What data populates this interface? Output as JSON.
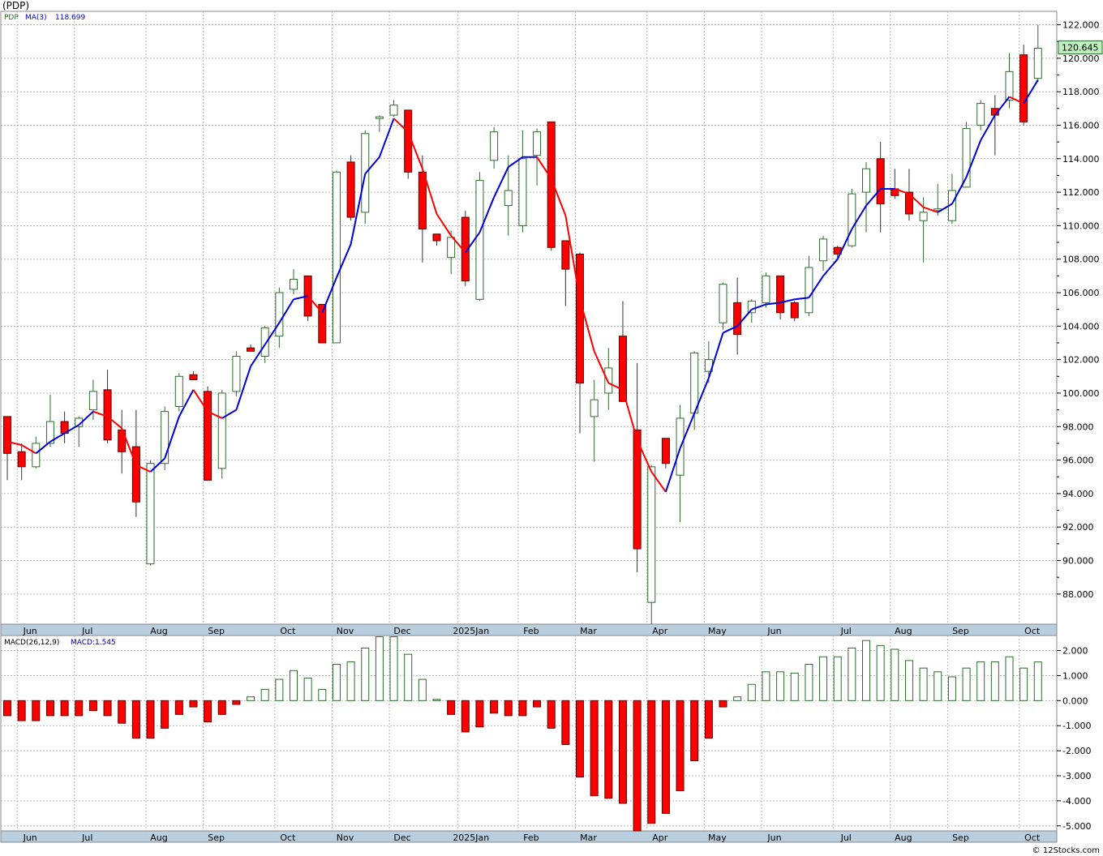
{
  "header": {
    "title": "(PDP)",
    "credit": "© 12Stocks.com"
  },
  "colors": {
    "up": "#2e6b2e",
    "down": "#ff0000",
    "ma_rising": "#0000dd",
    "ma_falling": "#ff0000",
    "grid": "#b8b8b8",
    "axis_band": "#b9cfe0",
    "last_price_bg": "#bff0bf"
  },
  "chart_data": [
    {
      "type": "candlestick",
      "title": "(PDP)",
      "legend": {
        "symbol": "PDP",
        "ma_label": "MA(3)",
        "ma_value": "118.699"
      },
      "last_price_label": "120.645",
      "ylim": [
        86.2,
        122.8
      ],
      "yticks": [
        "88.000",
        "90.000",
        "92.000",
        "94.000",
        "96.000",
        "98.000",
        "100.000",
        "102.000",
        "104.000",
        "106.000",
        "108.000",
        "110.000",
        "112.000",
        "114.000",
        "116.000",
        "118.000",
        "120.000",
        "122.000"
      ],
      "month_labels": [
        {
          "label": "Jun",
          "index": 1.2
        },
        {
          "label": "Jul",
          "index": 5.2
        },
        {
          "label": "Aug",
          "index": 10.2
        },
        {
          "label": "Sep",
          "index": 14.2
        },
        {
          "label": "Oct",
          "index": 19.2
        },
        {
          "label": "Nov",
          "index": 23.2
        },
        {
          "label": "Dec",
          "index": 27.2
        },
        {
          "label": "2025Jan",
          "index": 32.0
        },
        {
          "label": "Feb",
          "index": 36.2
        },
        {
          "label": "Mar",
          "index": 40.2
        },
        {
          "label": "Apr",
          "index": 45.2
        },
        {
          "label": "May",
          "index": 49.2
        },
        {
          "label": "Jun",
          "index": 53.2
        },
        {
          "label": "Jul",
          "index": 58.2
        },
        {
          "label": "Aug",
          "index": 62.2
        },
        {
          "label": "Sep",
          "index": 66.2
        },
        {
          "label": "Oct",
          "index": 71.2
        }
      ],
      "candles": [
        {
          "o": 98.6,
          "h": 98.6,
          "l": 94.8,
          "c": 96.4
        },
        {
          "o": 96.5,
          "h": 97.0,
          "l": 94.8,
          "c": 95.6
        },
        {
          "o": 95.6,
          "h": 97.4,
          "l": 95.5,
          "c": 97.0
        },
        {
          "o": 97.0,
          "h": 99.9,
          "l": 96.8,
          "c": 98.3
        },
        {
          "o": 98.3,
          "h": 98.9,
          "l": 97.0,
          "c": 97.6
        },
        {
          "o": 98.0,
          "h": 98.6,
          "l": 96.8,
          "c": 98.5
        },
        {
          "o": 99.0,
          "h": 100.8,
          "l": 98.4,
          "c": 100.1
        },
        {
          "o": 100.2,
          "h": 101.4,
          "l": 97.0,
          "c": 97.2
        },
        {
          "o": 97.8,
          "h": 99.0,
          "l": 95.2,
          "c": 96.5
        },
        {
          "o": 96.8,
          "h": 99.0,
          "l": 92.6,
          "c": 93.5
        },
        {
          "o": 89.8,
          "h": 96.0,
          "l": 89.7,
          "c": 95.8
        },
        {
          "o": 95.8,
          "h": 99.2,
          "l": 95.4,
          "c": 98.9
        },
        {
          "o": 99.2,
          "h": 101.2,
          "l": 98.9,
          "c": 101.0
        },
        {
          "o": 101.1,
          "h": 101.3,
          "l": 100.8,
          "c": 100.8
        },
        {
          "o": 100.1,
          "h": 100.4,
          "l": 94.8,
          "c": 94.8
        },
        {
          "o": 95.5,
          "h": 100.2,
          "l": 94.9,
          "c": 100.0
        },
        {
          "o": 100.1,
          "h": 102.5,
          "l": 99.8,
          "c": 102.2
        },
        {
          "o": 102.7,
          "h": 102.9,
          "l": 102.5,
          "c": 102.5
        },
        {
          "o": 102.2,
          "h": 104.0,
          "l": 101.8,
          "c": 103.9
        },
        {
          "o": 103.4,
          "h": 106.3,
          "l": 102.7,
          "c": 106.0
        },
        {
          "o": 106.2,
          "h": 107.4,
          "l": 105.9,
          "c": 106.8
        },
        {
          "o": 107.0,
          "h": 107.0,
          "l": 104.3,
          "c": 104.6
        },
        {
          "o": 105.3,
          "h": 105.3,
          "l": 103.0,
          "c": 103.0
        },
        {
          "o": 103.0,
          "h": 113.3,
          "l": 103.0,
          "c": 113.2
        },
        {
          "o": 113.8,
          "h": 114.2,
          "l": 110.3,
          "c": 110.5
        },
        {
          "o": 110.8,
          "h": 115.7,
          "l": 110.1,
          "c": 115.5
        },
        {
          "o": 116.4,
          "h": 116.6,
          "l": 115.6,
          "c": 116.5
        },
        {
          "o": 116.6,
          "h": 117.5,
          "l": 116.5,
          "c": 117.2
        },
        {
          "o": 116.9,
          "h": 116.9,
          "l": 112.8,
          "c": 113.2
        },
        {
          "o": 113.2,
          "h": 114.2,
          "l": 107.8,
          "c": 109.8
        },
        {
          "o": 109.5,
          "h": 109.5,
          "l": 108.8,
          "c": 109.1
        },
        {
          "o": 108.1,
          "h": 109.7,
          "l": 107.1,
          "c": 109.3
        },
        {
          "o": 110.5,
          "h": 110.9,
          "l": 106.4,
          "c": 106.7
        },
        {
          "o": 105.6,
          "h": 113.2,
          "l": 105.5,
          "c": 112.7
        },
        {
          "o": 113.9,
          "h": 115.9,
          "l": 113.4,
          "c": 115.6
        },
        {
          "o": 111.2,
          "h": 114.2,
          "l": 109.4,
          "c": 112.1
        },
        {
          "o": 110.0,
          "h": 115.7,
          "l": 109.6,
          "c": 114.0
        },
        {
          "o": 114.2,
          "h": 115.8,
          "l": 112.4,
          "c": 115.6
        },
        {
          "o": 116.2,
          "h": 116.2,
          "l": 108.5,
          "c": 108.7
        },
        {
          "o": 109.1,
          "h": 109.1,
          "l": 105.2,
          "c": 107.4
        },
        {
          "o": 108.3,
          "h": 108.4,
          "l": 97.6,
          "c": 100.6
        },
        {
          "o": 98.6,
          "h": 100.8,
          "l": 95.9,
          "c": 99.6
        },
        {
          "o": 100.0,
          "h": 102.7,
          "l": 99.0,
          "c": 101.5
        },
        {
          "o": 103.4,
          "h": 105.5,
          "l": 99.5,
          "c": 99.5
        },
        {
          "o": 97.8,
          "h": 101.8,
          "l": 89.3,
          "c": 90.7
        },
        {
          "o": 87.5,
          "h": 95.7,
          "l": 86.2,
          "c": 95.6
        },
        {
          "o": 97.3,
          "h": 97.3,
          "l": 95.5,
          "c": 95.8
        },
        {
          "o": 95.1,
          "h": 99.3,
          "l": 92.3,
          "c": 98.5
        },
        {
          "o": 98.8,
          "h": 102.5,
          "l": 97.8,
          "c": 102.4
        },
        {
          "o": 101.3,
          "h": 103.1,
          "l": 100.6,
          "c": 102.0
        },
        {
          "o": 104.2,
          "h": 106.6,
          "l": 103.8,
          "c": 106.5
        },
        {
          "o": 105.4,
          "h": 106.9,
          "l": 102.3,
          "c": 103.5
        },
        {
          "o": 104.8,
          "h": 105.6,
          "l": 104.2,
          "c": 105.5
        },
        {
          "o": 105.4,
          "h": 107.2,
          "l": 105.1,
          "c": 107.0
        },
        {
          "o": 107.0,
          "h": 107.0,
          "l": 104.4,
          "c": 104.8
        },
        {
          "o": 105.4,
          "h": 105.5,
          "l": 104.3,
          "c": 104.5
        },
        {
          "o": 104.8,
          "h": 108.2,
          "l": 104.6,
          "c": 107.5
        },
        {
          "o": 107.9,
          "h": 109.4,
          "l": 107.3,
          "c": 109.2
        },
        {
          "o": 108.7,
          "h": 108.8,
          "l": 108.1,
          "c": 108.3
        },
        {
          "o": 108.8,
          "h": 112.2,
          "l": 108.7,
          "c": 111.9
        },
        {
          "o": 112.0,
          "h": 113.8,
          "l": 109.6,
          "c": 113.4
        },
        {
          "o": 114.0,
          "h": 115.0,
          "l": 109.6,
          "c": 111.3
        },
        {
          "o": 112.2,
          "h": 113.4,
          "l": 111.6,
          "c": 111.8
        },
        {
          "o": 112.0,
          "h": 113.4,
          "l": 110.3,
          "c": 110.7
        },
        {
          "o": 110.3,
          "h": 111.7,
          "l": 107.8,
          "c": 110.8
        },
        {
          "o": 110.9,
          "h": 112.5,
          "l": 110.6,
          "c": 111.0
        },
        {
          "o": 110.3,
          "h": 113.1,
          "l": 110.1,
          "c": 112.1
        },
        {
          "o": 112.3,
          "h": 116.2,
          "l": 112.3,
          "c": 115.8
        },
        {
          "o": 116.0,
          "h": 117.5,
          "l": 115.7,
          "c": 117.3
        },
        {
          "o": 117.0,
          "h": 117.8,
          "l": 114.2,
          "c": 116.6
        },
        {
          "o": 117.5,
          "h": 120.3,
          "l": 117.0,
          "c": 119.2
        },
        {
          "o": 120.2,
          "h": 120.8,
          "l": 116.0,
          "c": 116.2
        },
        {
          "o": 118.8,
          "h": 122.0,
          "l": 118.6,
          "c": 120.6
        }
      ],
      "ma3": [
        97.1,
        96.9,
        96.4,
        97.1,
        97.6,
        98.1,
        98.9,
        98.6,
        97.9,
        95.7,
        95.3,
        96.1,
        98.6,
        100.2,
        98.9,
        98.5,
        99.0,
        101.6,
        102.9,
        104.2,
        105.6,
        105.8,
        104.8,
        106.9,
        108.9,
        113.1,
        114.1,
        116.4,
        115.6,
        113.4,
        110.7,
        109.4,
        108.4,
        109.6,
        111.7,
        113.5,
        114.1,
        114.1,
        112.8,
        110.6,
        105.6,
        102.5,
        100.6,
        100.2,
        97.2,
        95.3,
        94.1,
        96.7,
        98.8,
        100.9,
        103.6,
        104.0,
        105.0,
        105.3,
        105.4,
        105.6,
        105.7,
        107.0,
        108.0,
        109.8,
        111.2,
        112.2,
        112.2,
        111.9,
        111.1,
        110.8,
        111.3,
        112.9,
        115.1,
        116.6,
        117.7,
        117.3,
        118.7
      ],
      "macd_label": "MACD(26,12,9)",
      "macd_value_label": "MACD:1.545",
      "macd_ylim": [
        -5.2,
        2.6
      ],
      "macd_yticks": [
        "-5.000",
        "-4.000",
        "-3.000",
        "-2.000",
        "-1.000",
        "0.000",
        "1.000",
        "2.000"
      ],
      "macd": [
        -0.6,
        -0.8,
        -0.8,
        -0.6,
        -0.6,
        -0.6,
        -0.4,
        -0.6,
        -0.9,
        -1.5,
        -1.5,
        -1.1,
        -0.55,
        -0.25,
        -0.85,
        -0.55,
        -0.15,
        0.15,
        0.45,
        0.85,
        1.2,
        0.9,
        0.45,
        1.45,
        1.55,
        2.1,
        2.55,
        2.55,
        1.85,
        0.85,
        0.05,
        -0.55,
        -1.25,
        -1.05,
        -0.5,
        -0.6,
        -0.6,
        -0.25,
        -1.1,
        -1.75,
        -3.05,
        -3.8,
        -3.9,
        -4.1,
        -5.2,
        -4.9,
        -4.5,
        -3.6,
        -2.4,
        -1.5,
        -0.25,
        0.15,
        0.65,
        1.15,
        1.15,
        1.1,
        1.45,
        1.75,
        1.75,
        2.1,
        2.4,
        2.2,
        2.05,
        1.6,
        1.3,
        1.15,
        0.95,
        1.3,
        1.55,
        1.55,
        1.75,
        1.3,
        1.545
      ]
    }
  ]
}
